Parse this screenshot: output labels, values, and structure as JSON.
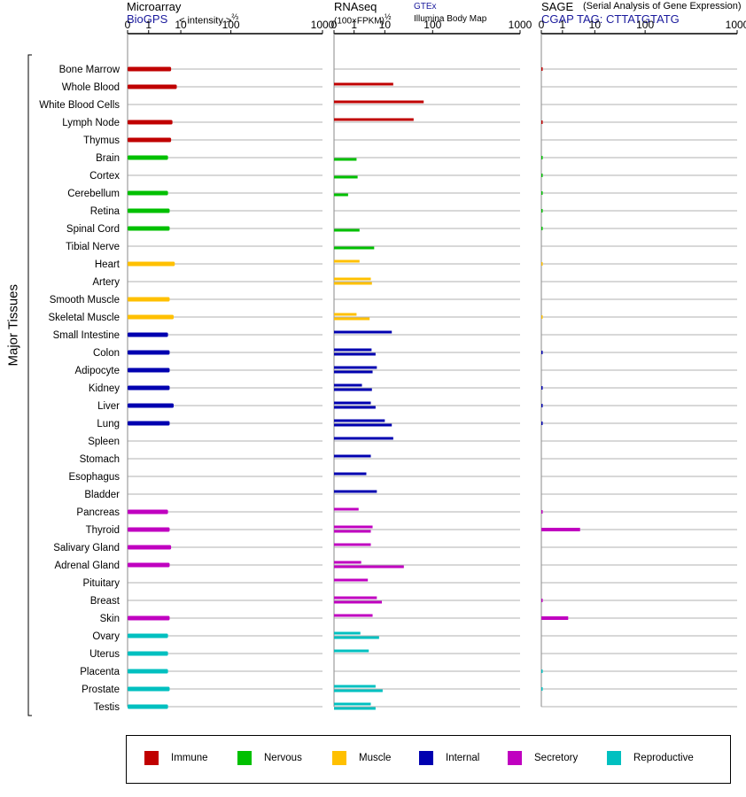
{
  "headers": {
    "microarray": {
      "title": "Microarray",
      "source": "BioGPS",
      "unit": "< intensity >",
      "unit_exp": "⅔"
    },
    "rnaseq": {
      "title": "RNAseq",
      "unit": "(100×FPKM)",
      "unit_exp": "½",
      "source1": "GTEx",
      "source2": "Illumina Body Map"
    },
    "sage": {
      "title": "SAGE",
      "subtitle": "(Serial Analysis of Gene Expression)",
      "tag": "CGAP TAG: CTTATGTATG"
    }
  },
  "axis_label": "Major Tissues",
  "legend": [
    {
      "name": "Immune",
      "color": "#c00000"
    },
    {
      "name": "Nervous",
      "color": "#00c000"
    },
    {
      "name": "Muscle",
      "color": "#ffc000"
    },
    {
      "name": "Internal",
      "color": "#0000b0"
    },
    {
      "name": "Secretory",
      "color": "#c000c0"
    },
    {
      "name": "Reproductive",
      "color": "#00c0c0"
    }
  ],
  "chart_data": {
    "type": "bar",
    "orientation": "horizontal",
    "x_scale": "log-like",
    "ticks": [
      "0",
      "1",
      "10",
      "100",
      "1000"
    ],
    "categories": [
      "Bone Marrow",
      "Whole Blood",
      "White Blood Cells",
      "Lymph Node",
      "Thymus",
      "Brain",
      "Cortex",
      "Cerebellum",
      "Retina",
      "Spinal Cord",
      "Tibial Nerve",
      "Heart",
      "Artery",
      "Smooth Muscle",
      "Skeletal Muscle",
      "Small Intestine",
      "Colon",
      "Adipocyte",
      "Kidney",
      "Liver",
      "Lung",
      "Spleen",
      "Stomach",
      "Esophagus",
      "Bladder",
      "Pancreas",
      "Thyroid",
      "Salivary Gland",
      "Adrenal Gland",
      "Pituitary",
      "Breast",
      "Skin",
      "Ovary",
      "Uterus",
      "Placenta",
      "Prostate",
      "Testis"
    ],
    "groups": [
      "Immune",
      "Immune",
      "Immune",
      "Immune",
      "Immune",
      "Nervous",
      "Nervous",
      "Nervous",
      "Nervous",
      "Nervous",
      "Nervous",
      "Muscle",
      "Muscle",
      "Muscle",
      "Muscle",
      "Internal",
      "Internal",
      "Internal",
      "Internal",
      "Internal",
      "Internal",
      "Internal",
      "Internal",
      "Internal",
      "Internal",
      "Secretory",
      "Secretory",
      "Secretory",
      "Secretory",
      "Secretory",
      "Secretory",
      "Secretory",
      "Reproductive",
      "Reproductive",
      "Reproductive",
      "Reproductive",
      "Reproductive"
    ],
    "panels": [
      {
        "name": "Microarray",
        "values": [
          5,
          7.5,
          null,
          5.5,
          5,
          4,
          null,
          4,
          4.5,
          4.5,
          null,
          6.5,
          null,
          4.5,
          6,
          4,
          4.5,
          4.5,
          4.5,
          6,
          4.5,
          null,
          null,
          null,
          null,
          4,
          4.5,
          5,
          4.5,
          null,
          null,
          4.5,
          4,
          4,
          4,
          4.5,
          4
        ]
      },
      {
        "name": "RNAseq GTEx",
        "values": [
          null,
          15,
          65,
          40,
          null,
          null,
          null,
          null,
          null,
          null,
          null,
          1.5,
          3.5,
          null,
          1.2,
          14,
          3.7,
          5.5,
          1.8,
          3.5,
          10,
          15,
          3.5,
          2.5,
          5.5,
          1.4,
          4,
          3.5,
          1.7,
          2.8,
          5.5,
          4,
          1.6,
          3,
          null,
          5,
          3.5
        ]
      },
      {
        "name": "RNAseq Illumina Body Map",
        "values": [
          null,
          null,
          null,
          null,
          null,
          1.2,
          1.3,
          0.7,
          null,
          1.5,
          4.5,
          null,
          3.8,
          null,
          3.2,
          null,
          5,
          4,
          3.8,
          5,
          14,
          null,
          null,
          null,
          null,
          null,
          3.5,
          null,
          25,
          null,
          8,
          null,
          6.5,
          null,
          null,
          8.5,
          5
        ]
      },
      {
        "name": "SAGE",
        "values": [
          0.05,
          null,
          null,
          0.05,
          null,
          0.05,
          0.05,
          0.05,
          0.05,
          0.05,
          null,
          0.02,
          null,
          null,
          0.02,
          null,
          0.05,
          null,
          0.05,
          0.05,
          0.05,
          null,
          null,
          null,
          null,
          0.05,
          3.5,
          null,
          null,
          null,
          0.05,
          1.5,
          null,
          null,
          0.05,
          0.05,
          null
        ]
      }
    ]
  }
}
